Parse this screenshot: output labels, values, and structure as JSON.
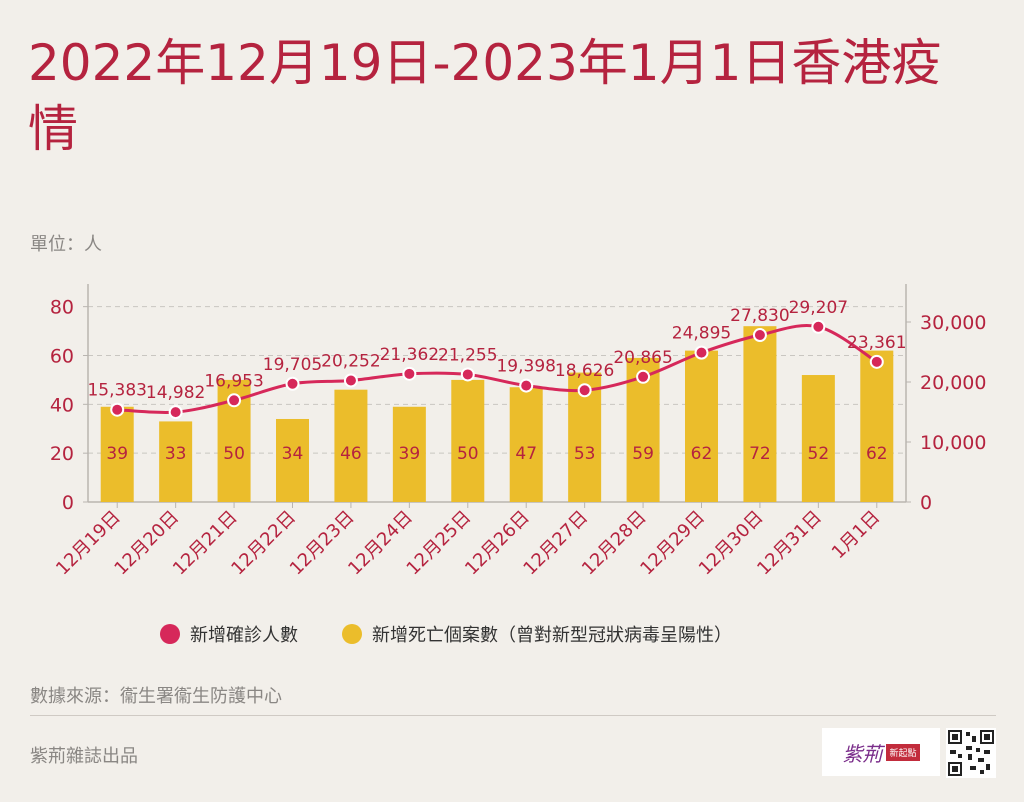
{
  "header": {
    "title": "2022年12月19日-2023年1月1日香港疫情",
    "unit": "單位：人"
  },
  "chart_data": {
    "type": "bar+line",
    "categories": [
      "12月19日",
      "12月20日",
      "12月21日",
      "12月22日",
      "12月23日",
      "12月24日",
      "12月25日",
      "12月26日",
      "12月27日",
      "12月28日",
      "12月29日",
      "12月30日",
      "12月31日",
      "1月1日"
    ],
    "series": [
      {
        "name": "新增確診人數",
        "type": "line",
        "axis": "right",
        "color": "#d6285a",
        "values": [
          15383,
          14982,
          16953,
          19705,
          20252,
          21362,
          21255,
          19398,
          18626,
          20865,
          24895,
          27830,
          29207,
          23361
        ],
        "labels": [
          "15,383",
          "14,982",
          "16,953",
          "19,705",
          "20,252",
          "21,362",
          "21,255",
          "19,398",
          "18,626",
          "20,865",
          "24,895",
          "27,830",
          "29,207",
          "23,361"
        ]
      },
      {
        "name": "新增死亡個案數（曾對新型冠狀病毒呈陽性）",
        "type": "bar",
        "axis": "left",
        "color": "#ebbd2b",
        "values": [
          39,
          33,
          50,
          34,
          46,
          39,
          50,
          47,
          53,
          59,
          62,
          72,
          52,
          62
        ]
      }
    ],
    "y_left": {
      "min": 0,
      "max": 86,
      "ticks": [
        0,
        20,
        40,
        60,
        80
      ],
      "tick_labels": [
        "0",
        "20",
        "40",
        "60",
        "80"
      ]
    },
    "y_right": {
      "min": 0,
      "max": 35000,
      "ticks": [
        0,
        10000,
        20000,
        30000
      ],
      "tick_labels": [
        "0",
        "10,000",
        "20,000",
        "30,000"
      ]
    },
    "grid": true,
    "legend": "bottom"
  },
  "legend": {
    "cases_label": "新增確診人數",
    "deaths_label": "新增死亡個案數（曾對新型冠狀病毒呈陽性）"
  },
  "colors": {
    "title": "#b5233f",
    "line": "#d6285a",
    "bar": "#ebbd2b",
    "label": "#b5233f"
  },
  "footer": {
    "source": "數據來源：衞生署衞生防護中心",
    "publisher": "紫荊雜誌出品",
    "logo_text": "紫荊",
    "logo_badge": "新起點"
  }
}
